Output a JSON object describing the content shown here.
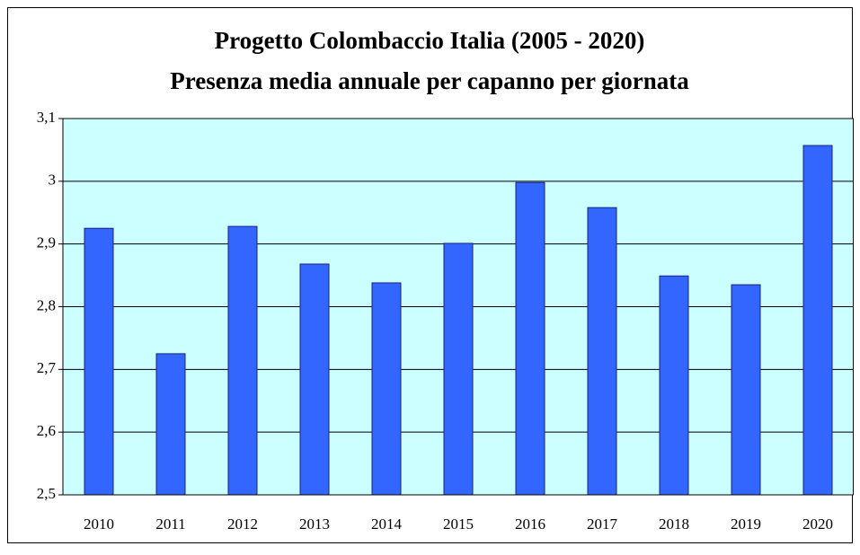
{
  "chart_data": {
    "type": "bar",
    "title": "Progetto Colombaccio Italia (2005 - 2020)",
    "subtitle": "Presenza media annuale per capanno per giornata",
    "categories": [
      "2010",
      "2011",
      "2012",
      "2013",
      "2014",
      "2015",
      "2016",
      "2017",
      "2018",
      "2019",
      "2020"
    ],
    "values": [
      2.925,
      2.725,
      2.928,
      2.868,
      2.838,
      2.901,
      2.998,
      2.958,
      2.849,
      2.835,
      3.057
    ],
    "color": "#3366ff",
    "ylim": [
      2.5,
      3.1
    ],
    "yticks": [
      {
        "value": 2.5,
        "label": "2,5"
      },
      {
        "value": 2.6,
        "label": "2,6"
      },
      {
        "value": 2.7,
        "label": "2,7"
      },
      {
        "value": 2.8,
        "label": "2,8"
      },
      {
        "value": 2.9,
        "label": "2,9"
      },
      3,
      {
        "value": 3.1,
        "label": "3,1"
      }
    ],
    "grid": true
  }
}
